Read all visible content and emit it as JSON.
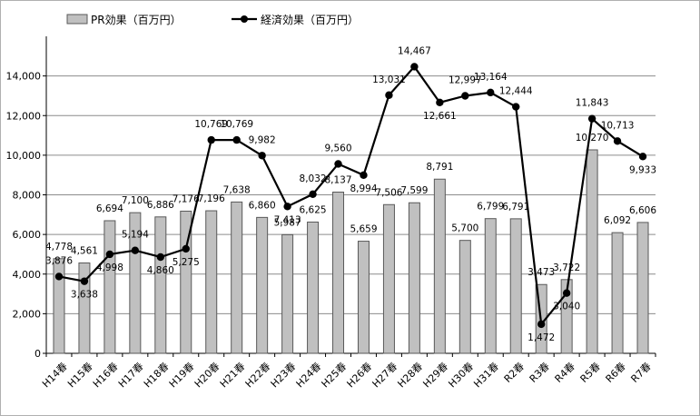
{
  "chart_data": {
    "type": "bar",
    "categories": [
      "H14春",
      "H15春",
      "H16春",
      "H17春",
      "H18春",
      "H19春",
      "H20春",
      "H21春",
      "H22春",
      "H23春",
      "H24春",
      "H25春",
      "H26春",
      "H27春",
      "H28春",
      "H29春",
      "H30春",
      "H31春",
      "R2春",
      "R3春",
      "R4春",
      "R5春",
      "R6春",
      "R7春"
    ],
    "series": [
      {
        "name": "PR効果（百万円）",
        "kind": "bar",
        "color": "#c0c0c0",
        "values": [
          4778,
          4561,
          6694,
          7100,
          6886,
          7176,
          7196,
          7638,
          6860,
          5987,
          6625,
          8137,
          5659,
          7506,
          7599,
          8791,
          5700,
          6799,
          6791,
          3473,
          3722,
          10270,
          6092,
          6606
        ],
        "labels": [
          "4,778",
          "4,561",
          "6,694",
          "7,100",
          "6,886",
          "7,176",
          "7,196",
          "7,638",
          "6,860",
          "5,987",
          "6,625",
          "8,137",
          "5,659",
          "7,506",
          "7,599",
          "8,791",
          "5,700",
          "6,799",
          "6,791",
          "3,473",
          "3,722",
          "10,270",
          "6,092",
          "6,606"
        ]
      },
      {
        "name": "経済効果（百万円）",
        "kind": "line",
        "color": "#000000",
        "values": [
          3876,
          3638,
          4998,
          5194,
          4860,
          5275,
          10769,
          10769,
          9982,
          7413,
          8032,
          9560,
          8994,
          13031,
          14467,
          12661,
          12997,
          13164,
          12444,
          1472,
          3040,
          11843,
          10713,
          9933
        ],
        "labels": [
          "3,876",
          "3,638",
          "4,998",
          "5,194",
          "4,860",
          "5,275",
          "10,769",
          "10,769",
          "9,982",
          "7,413",
          "8,032",
          "9,560",
          "8,994",
          "13,031",
          "14,467",
          "12,661",
          "12,997",
          "13,164",
          "12,444",
          "1,472",
          "3,040",
          "11,843",
          "10,713",
          "9,933"
        ]
      }
    ],
    "ylim": [
      0,
      16000
    ],
    "yticks": [
      0,
      2000,
      4000,
      6000,
      8000,
      10000,
      12000,
      14000
    ],
    "ytick_labels": [
      "0",
      "2,000",
      "4,000",
      "6,000",
      "8,000",
      "10,000",
      "12,000",
      "14,000"
    ],
    "grid": true,
    "legend_position": "top-left"
  }
}
